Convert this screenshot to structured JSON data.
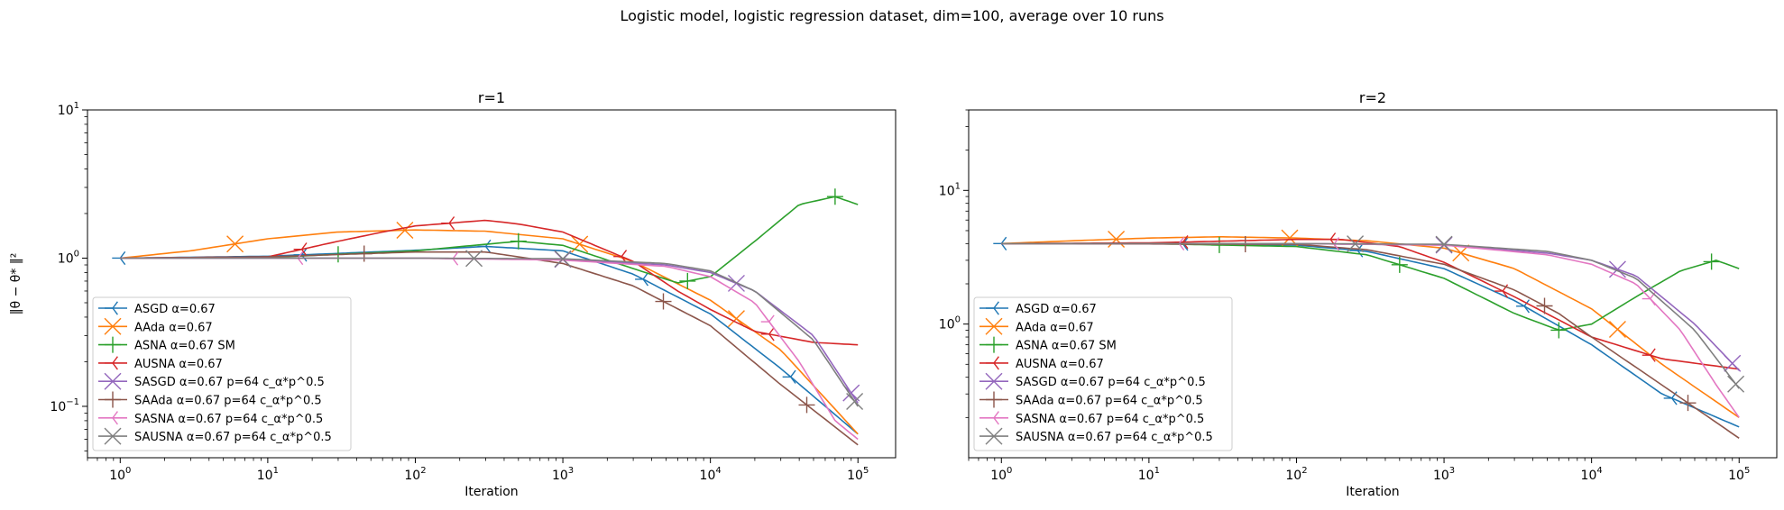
{
  "suptitle": "Logistic model, logistic regression dataset, dim=100, average over 10 runs",
  "chart_data": [
    {
      "type": "line",
      "title": "r=1",
      "xlabel": "Iteration",
      "ylabel": "‖θ − θ* ‖²",
      "xscale": "log",
      "yscale": "log",
      "xlim": [
        0.6,
        180000
      ],
      "ylim": [
        0.045,
        10
      ],
      "xticks": [
        {
          "v": 1,
          "base": "10",
          "exp": "0"
        },
        {
          "v": 10,
          "base": "10",
          "exp": "1"
        },
        {
          "v": 100,
          "base": "10",
          "exp": "2"
        },
        {
          "v": 1000,
          "base": "10",
          "exp": "3"
        },
        {
          "v": 10000,
          "base": "10",
          "exp": "4"
        },
        {
          "v": 100000,
          "base": "10",
          "exp": "5"
        }
      ],
      "yticks": [
        {
          "v": 0.1,
          "base": "10",
          "exp": "−1"
        },
        {
          "v": 1,
          "base": "10",
          "exp": "0"
        },
        {
          "v": 10,
          "base": "10",
          "exp": "1"
        }
      ],
      "legend_position": "lower-left",
      "series": [
        {
          "name": "ASGD α=0.67",
          "color": "#1f77b4",
          "marker": "tri_left",
          "points": [
            [
              1,
              1.0
            ],
            [
              10,
              1.03
            ],
            [
              100,
              1.13
            ],
            [
              300,
              1.2
            ],
            [
              1000,
              1.12
            ],
            [
              3000,
              0.78
            ],
            [
              10000,
              0.42
            ],
            [
              30000,
              0.18
            ],
            [
              100000,
              0.065
            ]
          ]
        },
        {
          "name": "AAda α=0.67",
          "color": "#ff7f0e",
          "marker": "x",
          "points": [
            [
              1,
              1.0
            ],
            [
              3,
              1.12
            ],
            [
              10,
              1.35
            ],
            [
              30,
              1.5
            ],
            [
              100,
              1.55
            ],
            [
              300,
              1.52
            ],
            [
              1000,
              1.35
            ],
            [
              3000,
              0.95
            ],
            [
              10000,
              0.52
            ],
            [
              30000,
              0.24
            ],
            [
              100000,
              0.065
            ]
          ]
        },
        {
          "name": "ASNA α=0.67 SM",
          "color": "#2ca02c",
          "marker": "vline",
          "points": [
            [
              1,
              1.0
            ],
            [
              10,
              1.01
            ],
            [
              100,
              1.12
            ],
            [
              500,
              1.3
            ],
            [
              1000,
              1.22
            ],
            [
              3000,
              0.85
            ],
            [
              6000,
              0.68
            ],
            [
              10000,
              0.75
            ],
            [
              20000,
              1.3
            ],
            [
              40000,
              2.3
            ],
            [
              70000,
              2.6
            ],
            [
              100000,
              2.3
            ]
          ]
        },
        {
          "name": "AUSNA α=0.67",
          "color": "#d62728",
          "marker": "tri_left",
          "points": [
            [
              1,
              1.0
            ],
            [
              10,
              1.02
            ],
            [
              30,
              1.3
            ],
            [
              60,
              1.5
            ],
            [
              100,
              1.65
            ],
            [
              300,
              1.8
            ],
            [
              500,
              1.7
            ],
            [
              1000,
              1.5
            ],
            [
              3000,
              0.95
            ],
            [
              6000,
              0.6
            ],
            [
              10000,
              0.45
            ],
            [
              20000,
              0.32
            ],
            [
              50000,
              0.27
            ],
            [
              100000,
              0.26
            ]
          ]
        },
        {
          "name": "SASGD α=0.67 p=64 c_α*p^0.5",
          "color": "#9467bd",
          "marker": "x",
          "points": [
            [
              1,
              1.0
            ],
            [
              100,
              1.0
            ],
            [
              1000,
              0.98
            ],
            [
              5000,
              0.9
            ],
            [
              10000,
              0.8
            ],
            [
              20000,
              0.6
            ],
            [
              50000,
              0.3
            ],
            [
              100000,
              0.105
            ]
          ]
        },
        {
          "name": "SAAda α=0.67 p=64 c_α*p^0.5",
          "color": "#8c564b",
          "marker": "vline",
          "points": [
            [
              1,
              1.0
            ],
            [
              10,
              1.02
            ],
            [
              100,
              1.1
            ],
            [
              300,
              1.1
            ],
            [
              1000,
              0.92
            ],
            [
              3000,
              0.65
            ],
            [
              10000,
              0.35
            ],
            [
              30000,
              0.14
            ],
            [
              100000,
              0.055
            ]
          ]
        },
        {
          "name": "SASNA α=0.67 p=64 c_α*p^0.5",
          "color": "#e377c2",
          "marker": "tri_left",
          "points": [
            [
              1,
              1.0
            ],
            [
              100,
              1.0
            ],
            [
              1000,
              0.97
            ],
            [
              5000,
              0.88
            ],
            [
              10000,
              0.75
            ],
            [
              20000,
              0.5
            ],
            [
              40000,
              0.2
            ],
            [
              70000,
              0.08
            ],
            [
              100000,
              0.06
            ]
          ]
        },
        {
          "name": "SAUSNA α=0.67 p=64 c_α*p^0.5",
          "color": "#7f7f7f",
          "marker": "x",
          "points": [
            [
              1,
              1.0
            ],
            [
              100,
              1.0
            ],
            [
              1000,
              0.99
            ],
            [
              5000,
              0.92
            ],
            [
              10000,
              0.82
            ],
            [
              20000,
              0.6
            ],
            [
              50000,
              0.28
            ],
            [
              100000,
              0.1
            ]
          ]
        }
      ]
    },
    {
      "type": "line",
      "title": "r=2",
      "xlabel": "Iteration",
      "ylabel": "",
      "xscale": "log",
      "yscale": "log",
      "xlim": [
        0.6,
        180000
      ],
      "ylim": [
        0.1,
        40
      ],
      "xticks": [
        {
          "v": 1,
          "base": "10",
          "exp": "0"
        },
        {
          "v": 10,
          "base": "10",
          "exp": "1"
        },
        {
          "v": 100,
          "base": "10",
          "exp": "2"
        },
        {
          "v": 1000,
          "base": "10",
          "exp": "3"
        },
        {
          "v": 10000,
          "base": "10",
          "exp": "4"
        },
        {
          "v": 100000,
          "base": "10",
          "exp": "5"
        }
      ],
      "yticks": [
        {
          "v": 1,
          "base": "10",
          "exp": "0"
        },
        {
          "v": 10,
          "base": "10",
          "exp": "1"
        }
      ],
      "legend_position": "lower-left",
      "series": [
        {
          "name": "ASGD α=0.67",
          "color": "#1f77b4",
          "marker": "tri_left",
          "points": [
            [
              1,
              4.0
            ],
            [
              10,
              4.0
            ],
            [
              100,
              3.9
            ],
            [
              300,
              3.5
            ],
            [
              1000,
              2.6
            ],
            [
              3000,
              1.5
            ],
            [
              10000,
              0.7
            ],
            [
              30000,
              0.3
            ],
            [
              100000,
              0.17
            ]
          ]
        },
        {
          "name": "AAda α=0.67",
          "color": "#ff7f0e",
          "marker": "x",
          "points": [
            [
              1,
              4.0
            ],
            [
              3,
              4.2
            ],
            [
              10,
              4.4
            ],
            [
              30,
              4.5
            ],
            [
              100,
              4.4
            ],
            [
              300,
              4.2
            ],
            [
              1000,
              3.7
            ],
            [
              3000,
              2.6
            ],
            [
              10000,
              1.3
            ],
            [
              30000,
              0.5
            ],
            [
              100000,
              0.2
            ]
          ]
        },
        {
          "name": "ASNA α=0.67 SM",
          "color": "#2ca02c",
          "marker": "vline",
          "points": [
            [
              1,
              4.0
            ],
            [
              10,
              4.0
            ],
            [
              100,
              3.8
            ],
            [
              300,
              3.3
            ],
            [
              1000,
              2.2
            ],
            [
              3000,
              1.2
            ],
            [
              6000,
              0.9
            ],
            [
              10000,
              1.0
            ],
            [
              20000,
              1.6
            ],
            [
              40000,
              2.5
            ],
            [
              70000,
              3.0
            ],
            [
              100000,
              2.6
            ]
          ]
        },
        {
          "name": "AUSNA α=0.67",
          "color": "#d62728",
          "marker": "tri_left",
          "points": [
            [
              1,
              4.0
            ],
            [
              10,
              4.05
            ],
            [
              100,
              4.3
            ],
            [
              200,
              4.3
            ],
            [
              500,
              3.8
            ],
            [
              1000,
              2.9
            ],
            [
              3000,
              1.6
            ],
            [
              10000,
              0.8
            ],
            [
              30000,
              0.55
            ],
            [
              100000,
              0.46
            ]
          ]
        },
        {
          "name": "SASGD α=0.67 p=64 c_α*p^0.5",
          "color": "#9467bd",
          "marker": "x",
          "points": [
            [
              1,
              4.0
            ],
            [
              100,
              4.0
            ],
            [
              1000,
              3.9
            ],
            [
              5000,
              3.4
            ],
            [
              10000,
              3.0
            ],
            [
              20000,
              2.3
            ],
            [
              50000,
              1.0
            ],
            [
              100000,
              0.45
            ]
          ]
        },
        {
          "name": "SAAda α=0.67 p=64 c_α*p^0.5",
          "color": "#8c564b",
          "marker": "vline",
          "points": [
            [
              1,
              4.0
            ],
            [
              100,
              3.95
            ],
            [
              300,
              3.6
            ],
            [
              1000,
              2.8
            ],
            [
              3000,
              1.8
            ],
            [
              6000,
              1.2
            ],
            [
              10000,
              0.8
            ],
            [
              30000,
              0.35
            ],
            [
              100000,
              0.14
            ]
          ]
        },
        {
          "name": "SASNA α=0.67 p=64 c_α*p^0.5",
          "color": "#e377c2",
          "marker": "tri_left",
          "points": [
            [
              1,
              4.0
            ],
            [
              100,
              4.0
            ],
            [
              1000,
              3.9
            ],
            [
              5000,
              3.3
            ],
            [
              10000,
              2.8
            ],
            [
              20000,
              2.0
            ],
            [
              40000,
              0.9
            ],
            [
              70000,
              0.35
            ],
            [
              100000,
              0.2
            ]
          ]
        },
        {
          "name": "SAUSNA α=0.67 p=64 c_α*p^0.5",
          "color": "#7f7f7f",
          "marker": "x",
          "points": [
            [
              1,
              4.0
            ],
            [
              100,
              4.0
            ],
            [
              1000,
              3.95
            ],
            [
              5000,
              3.5
            ],
            [
              10000,
              3.0
            ],
            [
              20000,
              2.2
            ],
            [
              50000,
              0.9
            ],
            [
              100000,
              0.33
            ]
          ]
        }
      ]
    }
  ]
}
